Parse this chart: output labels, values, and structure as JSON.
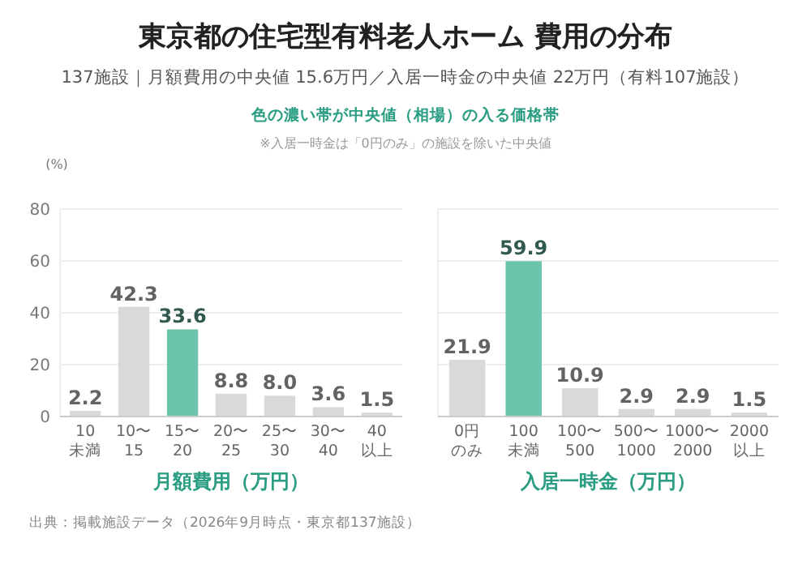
{
  "chart_data": [
    {
      "type": "bar",
      "title": "東京都の住宅型有料老人ホーム 費用の分布",
      "subtitle": "137施設｜月額費用の中央値 15.6万円／入居一時金の中央値 22万円（有料107施設）",
      "annotations": [
        "色の濃い帯が中央値（相場）の入る価格帯",
        "※入居一時金は「0円のみ」の施設を除いた中央値",
        "出典：掲載施設データ（2026年9月時点・東京都137施設）"
      ],
      "categories": [
        "10未満",
        "10〜15",
        "15〜20",
        "20〜25",
        "25〜30",
        "30〜40",
        "40以上"
      ],
      "values": [
        2.2,
        42.3,
        33.6,
        8.8,
        8.0,
        3.6,
        1.5
      ],
      "colors": [
        "#d9d9d9",
        "#d9d9d9",
        "#6cc4ad",
        "#d9d9d9",
        "#d9d9d9",
        "#d9d9d9",
        "#d9d9d9"
      ],
      "value_labels": [
        "2.2",
        "42.3",
        "33.6",
        "8.8",
        "8.0",
        "3.6",
        "1.5"
      ],
      "xlabel": "月額費用（万円）",
      "ylabel": "(%)",
      "ylim": [
        0,
        80
      ],
      "yticks": [
        0,
        20,
        40,
        60,
        80
      ],
      "grid": "y"
    },
    {
      "type": "bar",
      "categories": [
        "0円のみ",
        "100未満",
        "100〜500",
        "500〜1000",
        "1000〜2000",
        "2000以上"
      ],
      "values": [
        21.9,
        59.9,
        10.9,
        2.9,
        2.9,
        1.5
      ],
      "colors": [
        "#d9d9d9",
        "#6cc4ad",
        "#d9d9d9",
        "#d9d9d9",
        "#d9d9d9",
        "#d9d9d9"
      ],
      "xlabel": "入居一時金（万円）",
      "ylim": [
        0,
        80
      ],
      "yticks": [
        0,
        20,
        40,
        60,
        80
      ],
      "grid": "y",
      "tick_labels": "x",
      "data_labels": true
    }
  ]
}
